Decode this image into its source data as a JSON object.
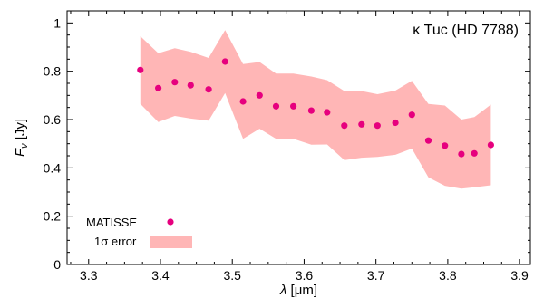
{
  "chart_data": {
    "type": "scatter",
    "annotation": "κ Tuc (HD 7788)",
    "xlabel": {
      "symbol": "λ",
      "unit": "[μm]"
    },
    "ylabel": {
      "symbol": "F",
      "subscript": "ν",
      "unit": "[Jy]"
    },
    "xlim": [
      3.27,
      3.915
    ],
    "ylim": [
      0,
      1.05
    ],
    "xticks": [
      3.3,
      3.4,
      3.5,
      3.6,
      3.7,
      3.8,
      3.9
    ],
    "xtick_labels": [
      "3.3",
      "3.4",
      "3.5",
      "3.6",
      "3.7",
      "3.8",
      "3.9"
    ],
    "yticks": [
      0,
      0.2,
      0.4,
      0.6,
      0.8,
      1
    ],
    "ytick_labels": [
      "0",
      "0.2",
      "0.4",
      "0.6",
      "0.8",
      "1"
    ],
    "grid": false,
    "legend": {
      "placement": "bottom-left",
      "entries": [
        {
          "label": "MATISSE",
          "kind": "marker"
        },
        {
          "label_symbol": "1σ",
          "label_rest": " error",
          "kind": "band"
        }
      ]
    },
    "colors": {
      "marker": "#e6007e",
      "band": "#ffb6b6"
    },
    "series": [
      {
        "name": "MATISSE",
        "x": [
          3.372,
          3.397,
          3.42,
          3.442,
          3.467,
          3.49,
          3.515,
          3.538,
          3.561,
          3.585,
          3.61,
          3.632,
          3.656,
          3.68,
          3.702,
          3.727,
          3.75,
          3.773,
          3.796,
          3.819,
          3.837,
          3.86
        ],
        "y": [
          0.805,
          0.73,
          0.755,
          0.742,
          0.725,
          0.84,
          0.675,
          0.7,
          0.655,
          0.655,
          0.637,
          0.63,
          0.575,
          0.58,
          0.575,
          0.587,
          0.62,
          0.513,
          0.492,
          0.457,
          0.46,
          0.495
        ]
      }
    ],
    "error_band": {
      "name": "1σ error",
      "x": [
        3.372,
        3.397,
        3.42,
        3.442,
        3.467,
        3.49,
        3.515,
        3.538,
        3.561,
        3.585,
        3.61,
        3.632,
        3.656,
        3.68,
        3.702,
        3.727,
        3.75,
        3.773,
        3.796,
        3.819,
        3.837,
        3.86
      ],
      "upper": [
        0.945,
        0.875,
        0.895,
        0.88,
        0.855,
        0.97,
        0.83,
        0.838,
        0.79,
        0.79,
        0.778,
        0.763,
        0.718,
        0.718,
        0.705,
        0.72,
        0.76,
        0.665,
        0.658,
        0.6,
        0.61,
        0.662
      ],
      "lower": [
        0.665,
        0.59,
        0.615,
        0.604,
        0.595,
        0.71,
        0.52,
        0.562,
        0.52,
        0.52,
        0.496,
        0.497,
        0.432,
        0.442,
        0.445,
        0.454,
        0.48,
        0.361,
        0.326,
        0.314,
        0.32,
        0.328
      ]
    }
  }
}
